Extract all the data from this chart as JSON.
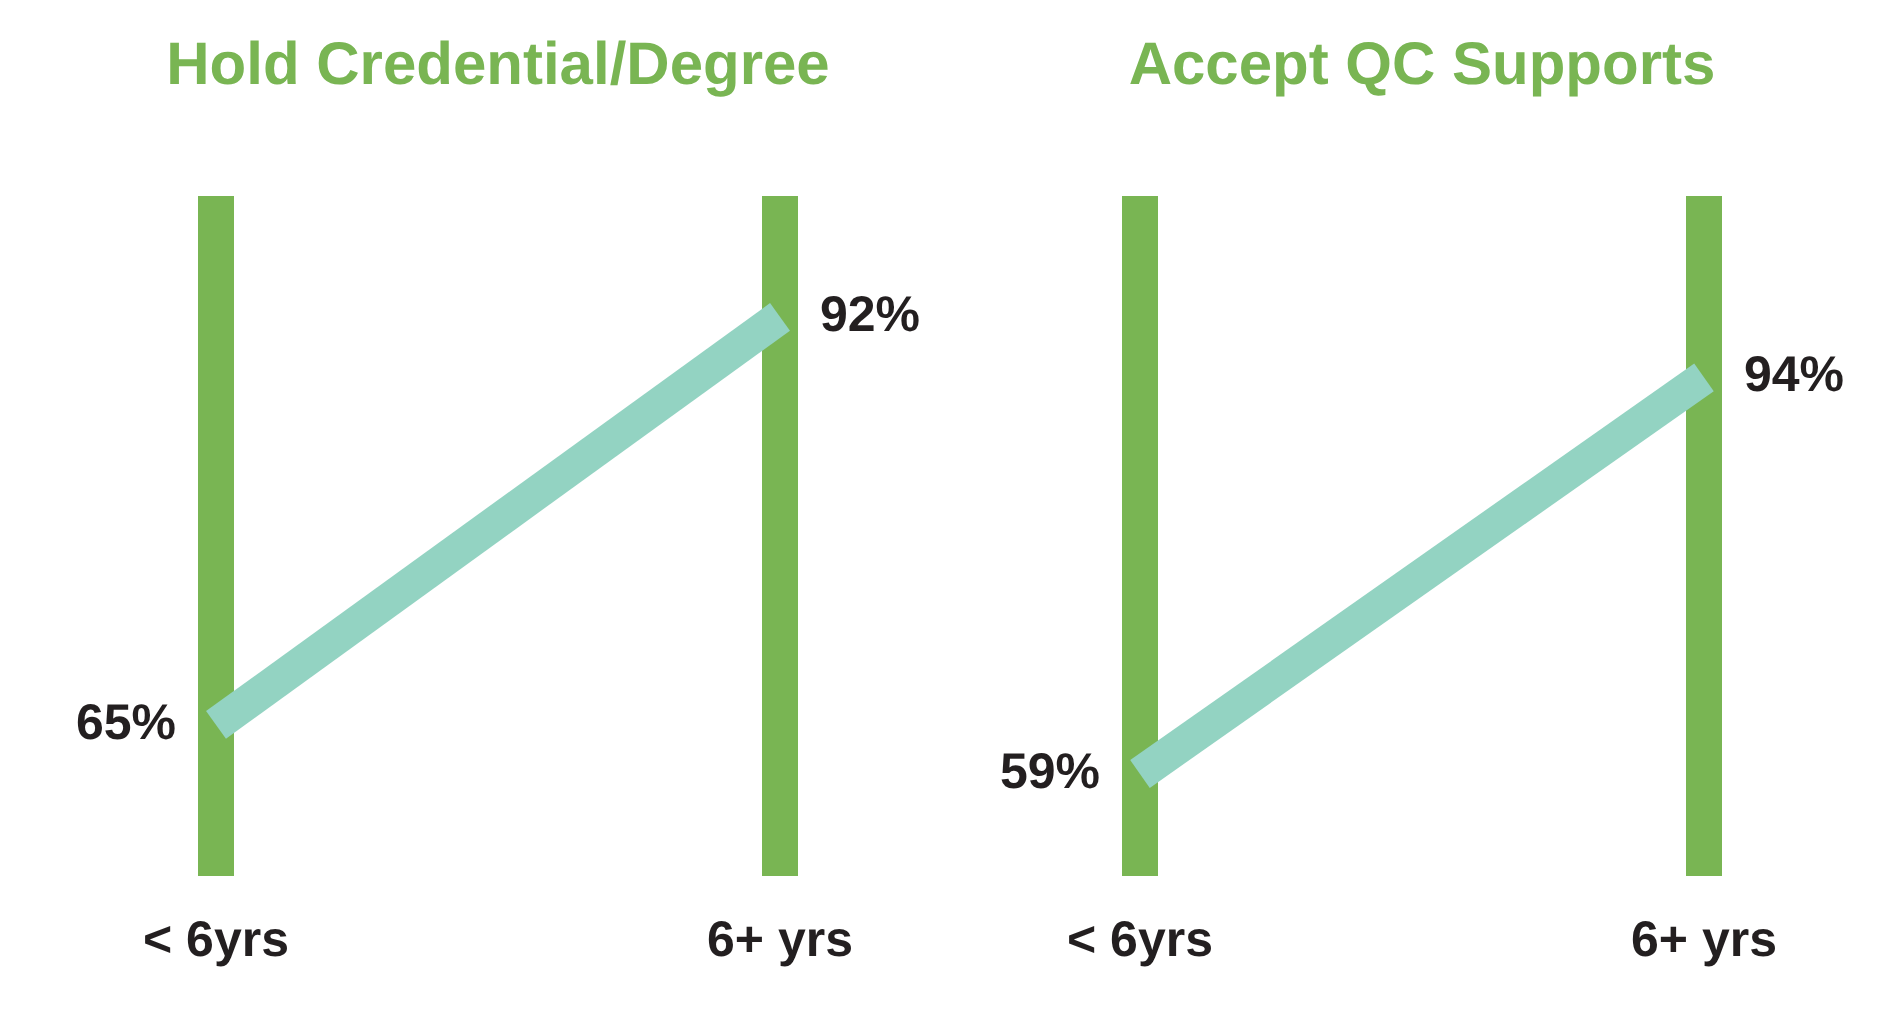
{
  "chart_data": [
    {
      "type": "line",
      "title": "Hold Credential/Degree",
      "categories": [
        "< 6yrs",
        "6+ yrs"
      ],
      "series": [
        {
          "color": "#93d3c2",
          "values": [
            65,
            92
          ],
          "value_labels": [
            "65%",
            "92%"
          ]
        }
      ],
      "grid": "x",
      "marker": "none",
      "legend": false
    },
    {
      "type": "line",
      "title": "Accept QC Supports",
      "categories": [
        "< 6yrs",
        "6+ yrs"
      ],
      "series": [
        {
          "color": "#93d3c2",
          "values": [
            59,
            94
          ],
          "value_labels": [
            "59%",
            "94%"
          ]
        }
      ],
      "grid": "x",
      "marker": "none",
      "legend": false
    }
  ]
}
